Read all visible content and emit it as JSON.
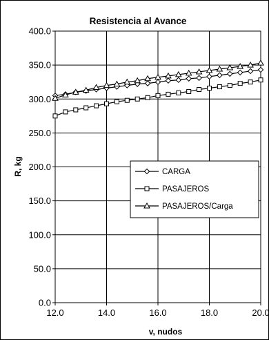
{
  "chart_data": {
    "type": "line",
    "title": "Resistencia al Avance",
    "xlabel": "v, nudos",
    "ylabel": "R, kg",
    "xlim": [
      12.0,
      20.0
    ],
    "ylim": [
      0.0,
      400.0
    ],
    "x_ticks": [
      "12.0",
      "14.0",
      "16.0",
      "18.0",
      "20.0"
    ],
    "y_ticks": [
      "0.0",
      "50.0",
      "100.0",
      "150.0",
      "200.0",
      "250.0",
      "300.0",
      "350.0",
      "400.0"
    ],
    "grid": true,
    "legend_position": "middle-right",
    "x": [
      12.0,
      12.4,
      12.8,
      13.2,
      13.6,
      14.0,
      14.4,
      14.8,
      15.2,
      15.6,
      16.0,
      16.4,
      16.8,
      17.2,
      17.6,
      18.0,
      18.4,
      18.8,
      19.2,
      19.6,
      20.0
    ],
    "series": [
      {
        "name": "CARGA",
        "marker": "diamond",
        "values": [
          305,
          307,
          310,
          312,
          314,
          316,
          318,
          320,
          322,
          323,
          325,
          327,
          328,
          330,
          331,
          333,
          335,
          337,
          339,
          341,
          343
        ]
      },
      {
        "name": "PASAJEROS",
        "marker": "square",
        "values": [
          275,
          281,
          284,
          287,
          290,
          293,
          296,
          298,
          300,
          302,
          305,
          307,
          309,
          311,
          314,
          316,
          318,
          320,
          323,
          325,
          328
        ]
      },
      {
        "name": "PASAJEROS/Carga",
        "marker": "triangle",
        "values": [
          301,
          306,
          310,
          313,
          317,
          320,
          322,
          325,
          327,
          330,
          332,
          334,
          336,
          338,
          340,
          342,
          344,
          346,
          348,
          350,
          353
        ]
      }
    ]
  }
}
